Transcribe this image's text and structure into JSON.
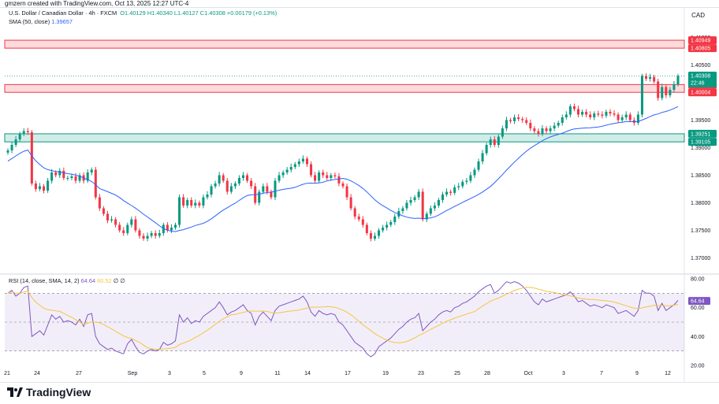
{
  "header": {
    "created_line": "gmzern created with TradingView.com, Oct 13, 2025 12:27 UTC-4",
    "symbol": "U.S. Dollar / Canadian Dollar · 4h · FXCM",
    "ohlc": "O1.40129  H1.40340  L1.40127  C1.40308  +0.00179 (+0.13%)",
    "sma_label": "SMA (50, close)",
    "sma_value": "1.39657",
    "currency": "CAD"
  },
  "rsi_legend": {
    "label": "RSI (14, close, SMA, 14, 2)",
    "rsi_value": "64.64",
    "sma_value": "60.52",
    "extra": "∅ ∅"
  },
  "brand": {
    "name": "TradingView"
  },
  "colors": {
    "up": "#089981",
    "down": "#f23645",
    "sma": "#2962ff",
    "rsi": "#7e57c2",
    "rsi_ma": "#f5c542"
  },
  "price_tags": {
    "p1": "1.40949",
    "p2": "1.40805",
    "cur_price": "1.40308",
    "cur_time": "22:46",
    "p3": "1.40145",
    "p4": "1.40004",
    "p5": "1.39251",
    "p6": "1.39105"
  },
  "chart_data": [
    {
      "type": "candlestick",
      "title": "U.S. Dollar / Canadian Dollar · 4h · FXCM",
      "y_ticks": [
        "1.41000",
        "1.40500",
        "1.39500",
        "1.39000",
        "1.38500",
        "1.38000",
        "1.37500",
        "1.37000"
      ],
      "ylim": [
        1.3675,
        1.4125
      ],
      "x_ticks": [
        "21",
        "24",
        "27",
        "Sep",
        "3",
        "5",
        "9",
        "11",
        "14",
        "17",
        "19",
        "23",
        "25",
        "28",
        "Oct",
        "3",
        "7",
        "9",
        "12"
      ],
      "zones": [
        {
          "name": "resistance",
          "from": 1.40805,
          "to": 1.40949,
          "color": "red"
        },
        {
          "name": "resistance",
          "from": 1.40004,
          "to": 1.40145,
          "color": "red"
        },
        {
          "name": "support",
          "from": 1.39105,
          "to": 1.39251,
          "color": "green"
        }
      ],
      "close_series": [
        1.3895,
        1.3905,
        1.3915,
        1.3925,
        1.393,
        1.3928,
        1.3835,
        1.3825,
        1.383,
        1.3822,
        1.384,
        1.3855,
        1.385,
        1.3858,
        1.3845,
        1.3845,
        1.3848,
        1.384,
        1.385,
        1.384,
        1.3855,
        1.386,
        1.381,
        1.379,
        1.378,
        1.3768,
        1.377,
        1.376,
        1.375,
        1.3745,
        1.376,
        1.377,
        1.375,
        1.374,
        1.3735,
        1.374,
        1.3745,
        1.374,
        1.3745,
        1.376,
        1.375,
        1.3755,
        1.376,
        1.381,
        1.3795,
        1.3805,
        1.3795,
        1.38,
        1.3795,
        1.381,
        1.3815,
        1.383,
        1.3835,
        1.385,
        1.384,
        1.382,
        1.383,
        1.3835,
        1.3845,
        1.385,
        1.384,
        1.383,
        1.38,
        1.382,
        1.383,
        1.382,
        1.381,
        1.384,
        1.385,
        1.3855,
        1.386,
        1.3865,
        1.387,
        1.3875,
        1.388,
        1.387,
        1.385,
        1.384,
        1.3855,
        1.385,
        1.3845,
        1.385,
        1.3848,
        1.3835,
        1.383,
        1.381,
        1.379,
        1.3775,
        1.377,
        1.376,
        1.3745,
        1.3735,
        1.374,
        1.375,
        1.3755,
        1.376,
        1.3765,
        1.3775,
        1.3785,
        1.379,
        1.38,
        1.3805,
        1.381,
        1.382,
        1.377,
        1.378,
        1.379,
        1.3795,
        1.3805,
        1.3815,
        1.382,
        1.3818,
        1.3828,
        1.383,
        1.3838,
        1.384,
        1.385,
        1.386,
        1.3875,
        1.389,
        1.3905,
        1.3915,
        1.3905,
        1.392,
        1.3935,
        1.395,
        1.3948,
        1.3955,
        1.3952,
        1.395,
        1.3945,
        1.3935,
        1.393,
        1.3925,
        1.3935,
        1.393,
        1.3935,
        1.394,
        1.3945,
        1.3955,
        1.396,
        1.3975,
        1.397,
        1.396,
        1.3965,
        1.396,
        1.3955,
        1.3962,
        1.396,
        1.3958,
        1.3965,
        1.3962,
        1.396,
        1.395,
        1.3955,
        1.396,
        1.395,
        1.3945,
        1.396,
        1.403,
        1.4025,
        1.4028,
        1.402,
        1.399,
        1.401,
        1.3995,
        1.4005,
        1.4015,
        1.403
      ],
      "series": [
        {
          "name": "SMA (50, close)",
          "start": 1.3803,
          "end": 1.39657
        }
      ]
    },
    {
      "type": "line",
      "title": "RSI (14, close, SMA, 14, 2)",
      "y_ticks": [
        "80.00",
        "60.00",
        "40.00",
        "20.00"
      ],
      "ylim": [
        20,
        80
      ],
      "band": [
        30,
        70
      ],
      "series": [
        {
          "name": "RSI",
          "values": [
            70,
            72,
            68,
            70,
            74,
            75,
            40,
            42,
            44,
            41,
            48,
            55,
            52,
            54,
            50,
            51,
            50,
            48,
            52,
            47,
            55,
            56,
            40,
            35,
            33,
            31,
            32,
            30,
            29,
            28,
            35,
            38,
            33,
            29,
            28,
            30,
            31,
            30,
            31,
            36,
            34,
            35,
            37,
            55,
            50,
            53,
            49,
            51,
            50,
            54,
            56,
            58,
            60,
            64,
            60,
            55,
            57,
            58,
            60,
            62,
            58,
            56,
            48,
            54,
            57,
            54,
            51,
            58,
            61,
            62,
            63,
            64,
            65,
            66,
            68,
            64,
            57,
            54,
            58,
            56,
            55,
            56,
            55,
            50,
            48,
            44,
            40,
            36,
            34,
            32,
            28,
            26,
            28,
            33,
            35,
            37,
            39,
            42,
            45,
            47,
            50,
            52,
            53,
            56,
            44,
            47,
            50,
            52,
            55,
            57,
            58,
            57,
            60,
            61,
            63,
            64,
            66,
            68,
            71,
            73,
            75,
            76,
            70,
            72,
            75,
            78,
            77,
            78,
            77,
            75,
            72,
            68,
            64,
            62,
            66,
            64,
            65,
            66,
            67,
            68,
            69,
            71,
            68,
            64,
            65,
            63,
            61,
            62,
            61,
            60,
            62,
            61,
            60,
            56,
            57,
            58,
            56,
            54,
            58,
            72,
            70,
            70,
            68,
            58,
            63,
            58,
            60,
            62,
            65
          ]
        },
        {
          "name": "RSI SMA",
          "start": 62,
          "end": 60.52
        }
      ]
    }
  ]
}
